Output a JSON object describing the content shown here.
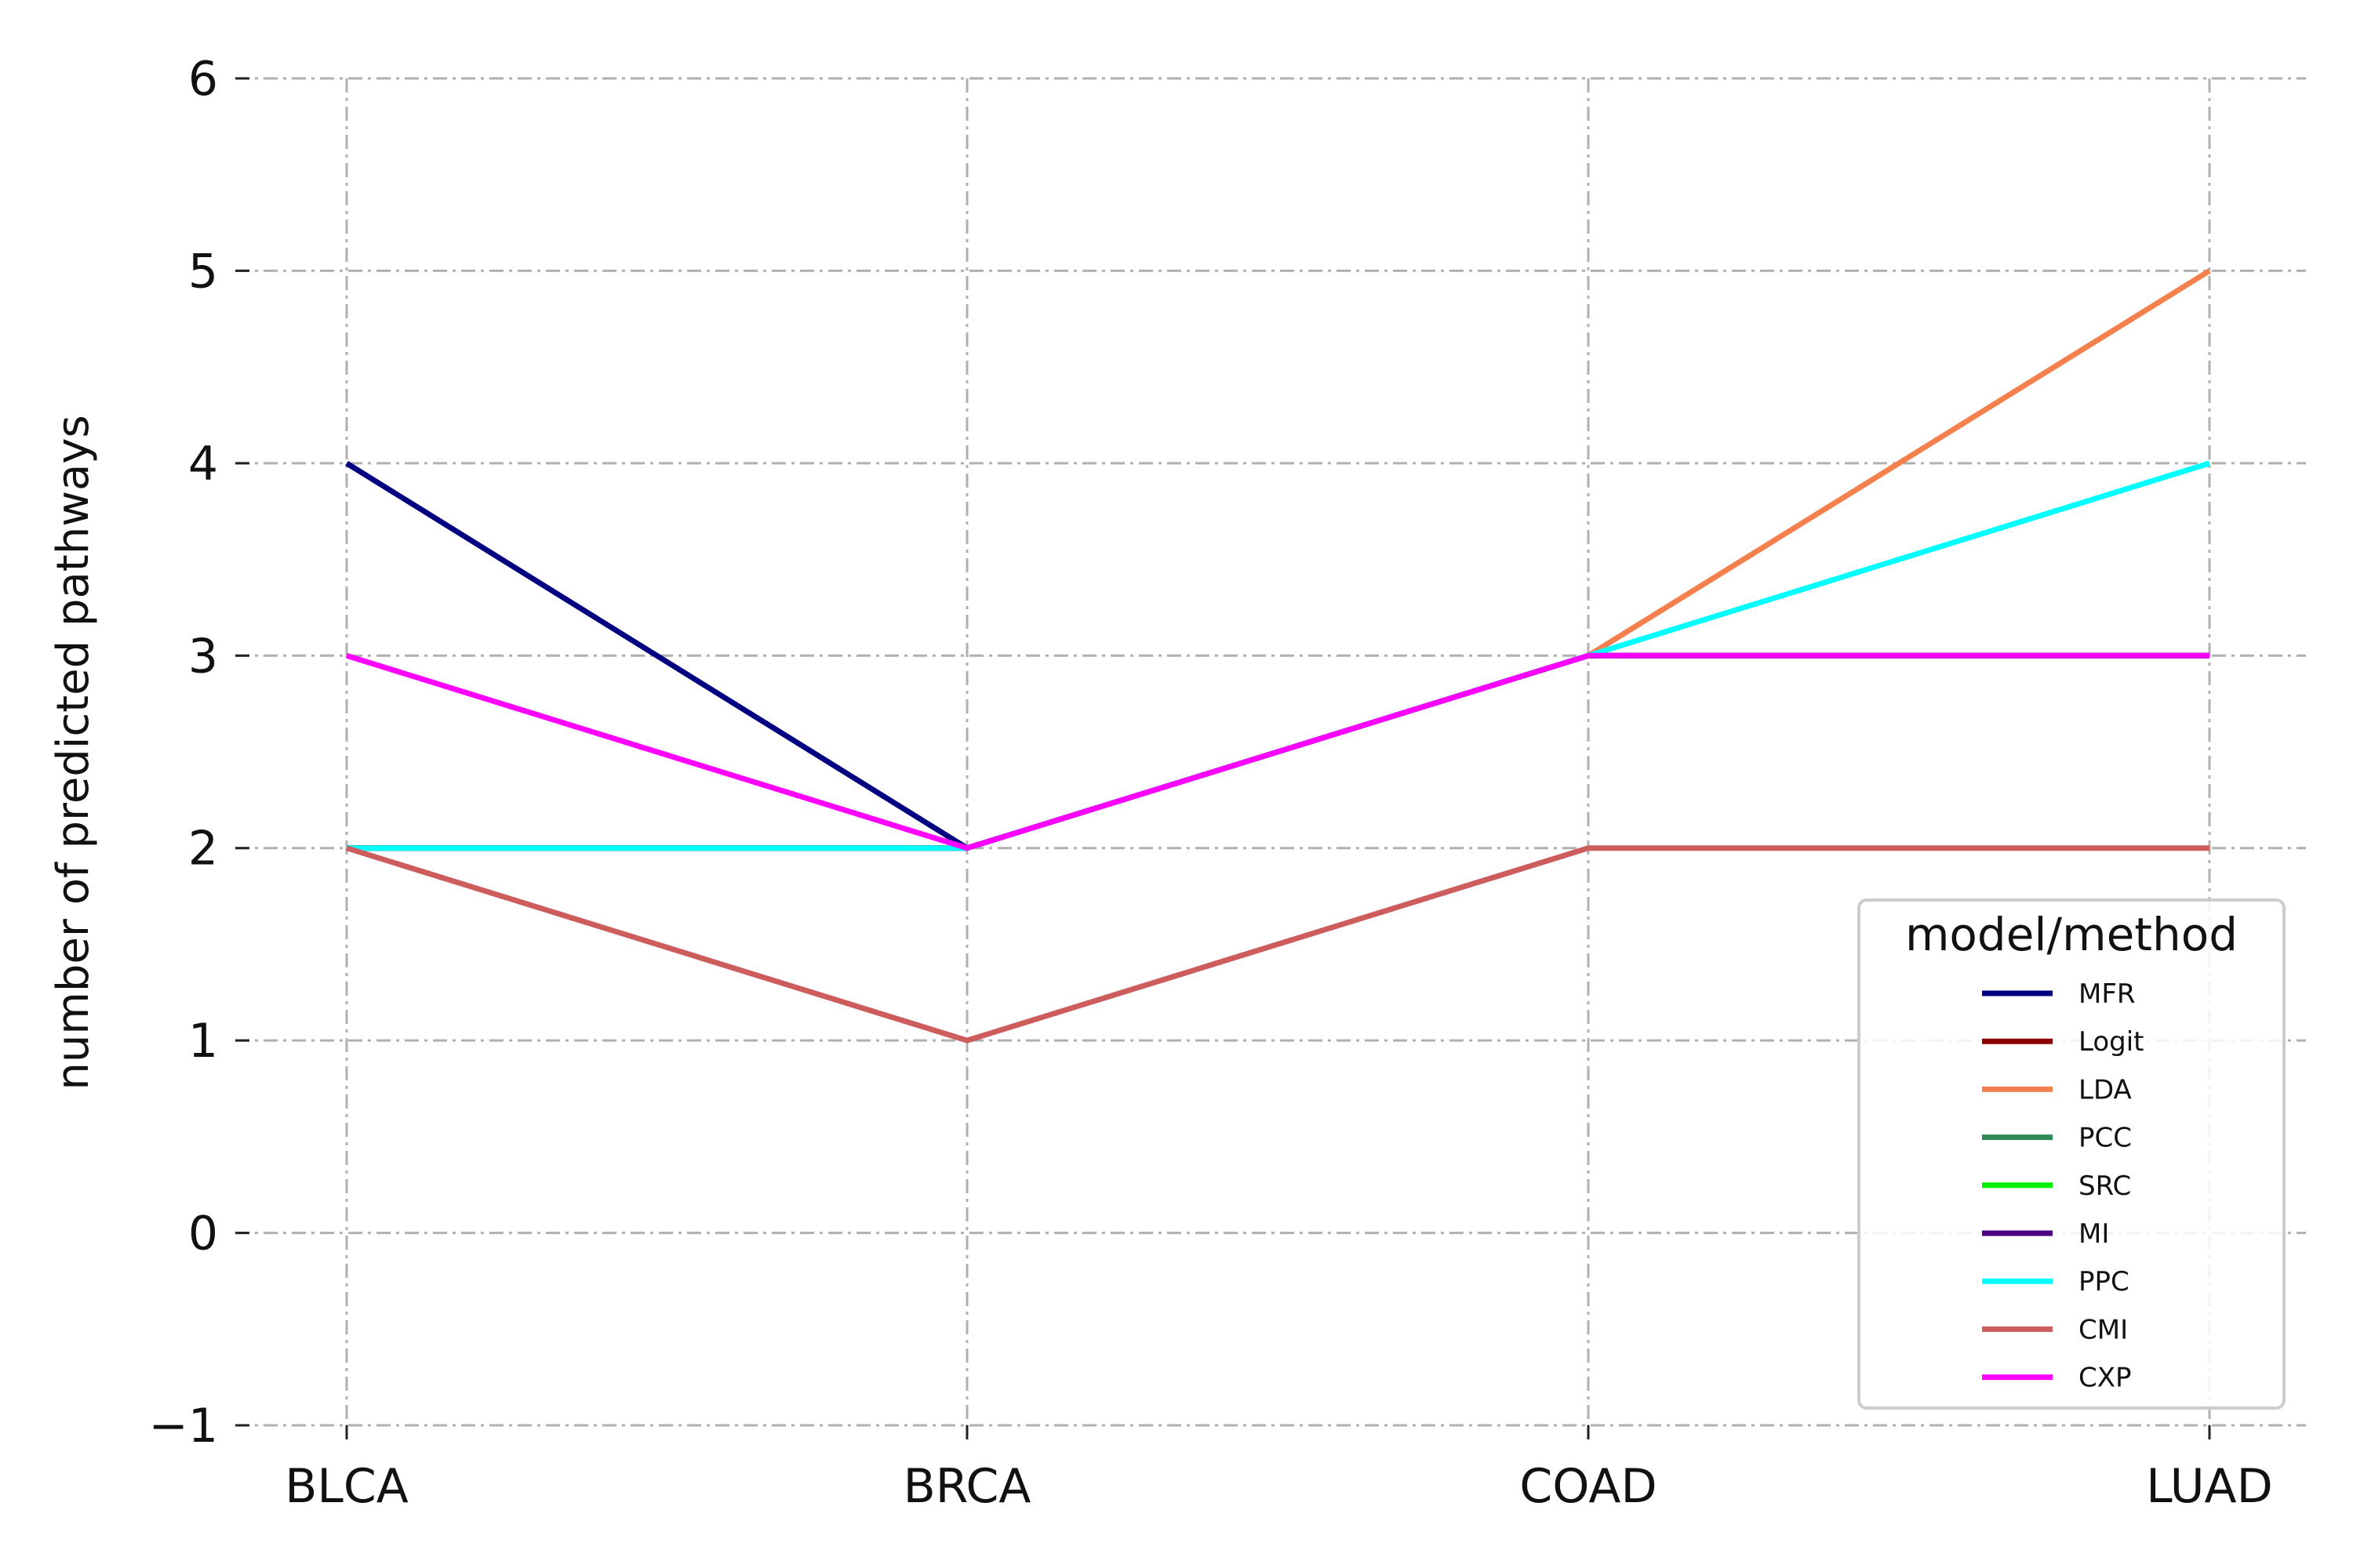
{
  "chart_data": {
    "type": "line",
    "title": "",
    "xlabel": "",
    "ylabel": "number of predicted pathways",
    "categories": [
      "BLCA",
      "BRCA",
      "COAD",
      "LUAD"
    ],
    "ylim": [
      -1,
      6
    ],
    "yticks": [
      -1,
      0,
      1,
      2,
      3,
      4,
      5,
      6
    ],
    "grid": true,
    "legend": {
      "title": "model/method",
      "position": "lower-right"
    },
    "series": [
      {
        "name": "MFR",
        "color": "#000080",
        "values": [
          4,
          2,
          3,
          3
        ]
      },
      {
        "name": "Logit",
        "color": "#8B0000",
        "values": [
          2,
          2,
          3,
          3
        ]
      },
      {
        "name": "LDA",
        "color": "#F4804E",
        "values": [
          2,
          2,
          3,
          5
        ]
      },
      {
        "name": "PCC",
        "color": "#2E8B57",
        "values": [
          2,
          2,
          3,
          3
        ]
      },
      {
        "name": "SRC",
        "color": "#00EE00",
        "values": [
          2,
          2,
          3,
          3
        ]
      },
      {
        "name": "MI",
        "color": "#4B0082",
        "values": [
          2,
          2,
          3,
          3
        ]
      },
      {
        "name": "PPC",
        "color": "#00FFFF",
        "values": [
          2,
          2,
          3,
          4
        ]
      },
      {
        "name": "CMI",
        "color": "#CD5C5C",
        "values": [
          2,
          1,
          2,
          2
        ]
      },
      {
        "name": "CXP",
        "color": "#FF00FF",
        "values": [
          3,
          2,
          3,
          3
        ]
      }
    ]
  }
}
